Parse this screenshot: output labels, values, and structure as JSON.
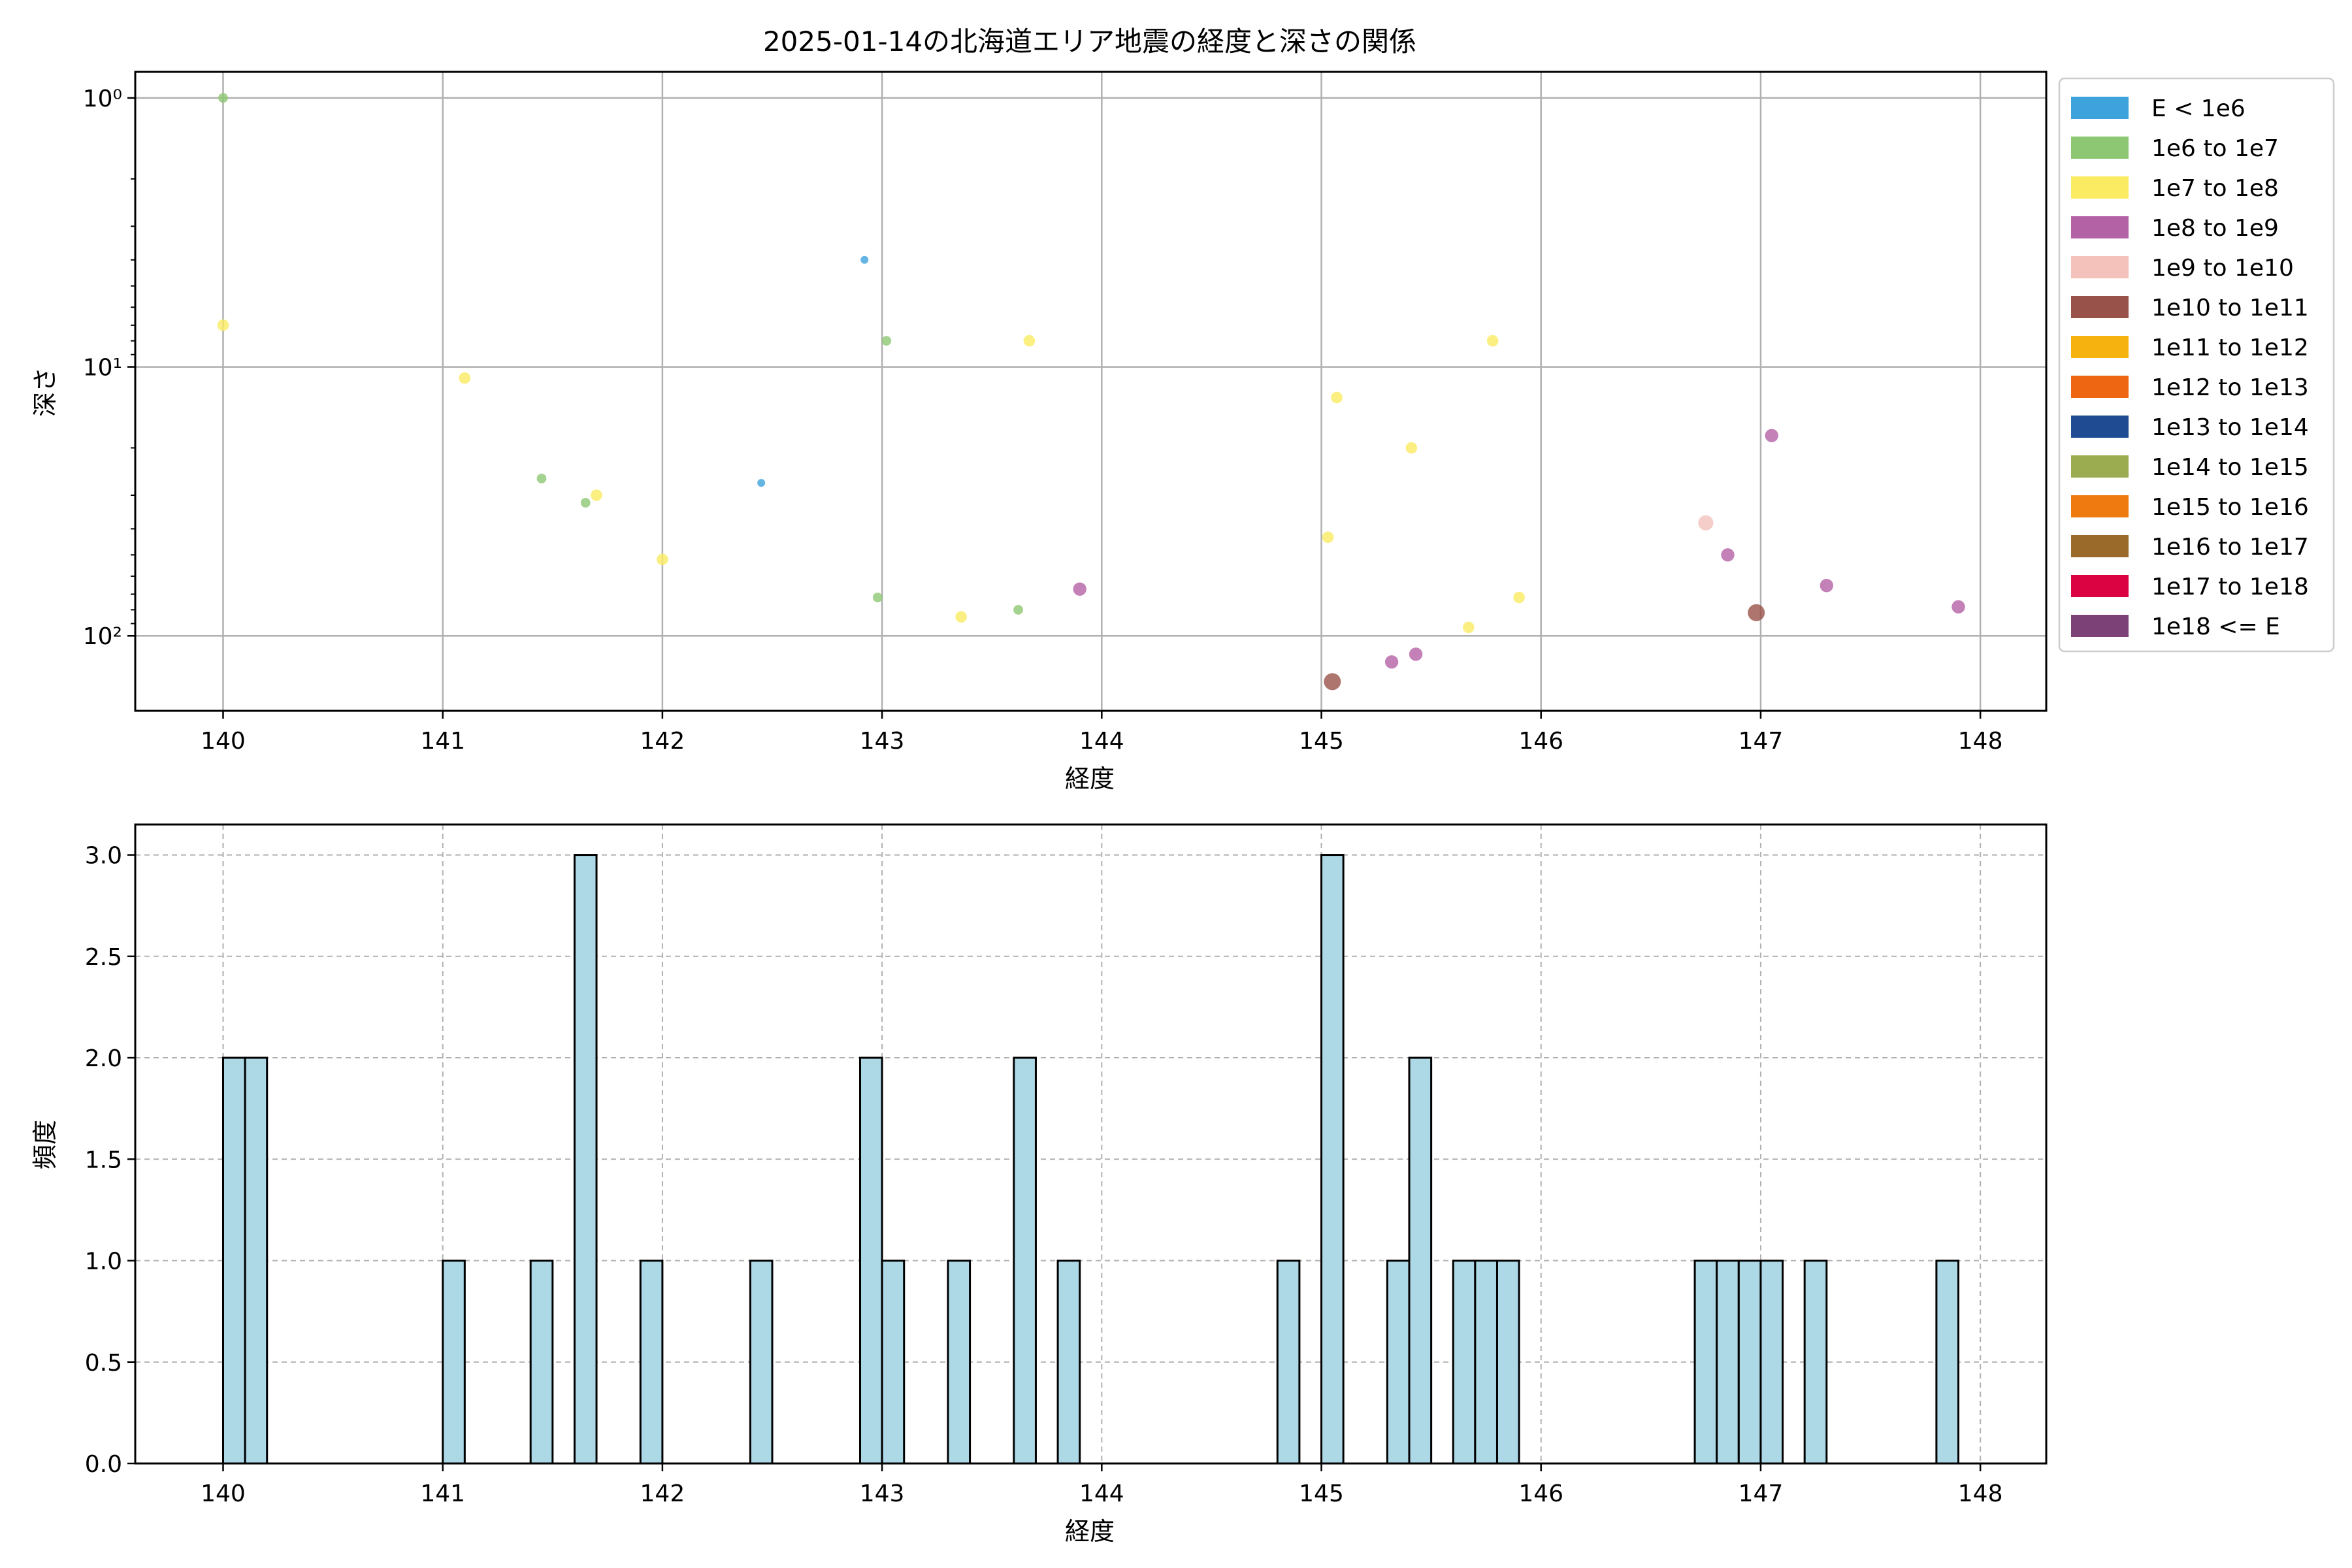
{
  "chart_data": [
    {
      "type": "scatter",
      "title": "2025-01-14の北海道エリア地震の経度と深さの関係",
      "xlabel": "経度",
      "ylabel": "深さ",
      "xlim": [
        139.6,
        148.3
      ],
      "ylim": [
        190,
        0.8
      ],
      "yscale": "log",
      "y_inverted": true,
      "x_ticks": [
        140,
        141,
        142,
        143,
        144,
        145,
        146,
        147,
        148
      ],
      "y_ticks": [
        {
          "value": 1,
          "label": "10⁰"
        },
        {
          "value": 10,
          "label": "10¹"
        },
        {
          "value": 100,
          "label": "10²"
        }
      ],
      "grid": true,
      "legend": {
        "placement": "outside-right",
        "entries": [
          {
            "label": "E < 1e6",
            "color": "#3ea2dc"
          },
          {
            "label": "1e6 to 1e7",
            "color": "#8dc773"
          },
          {
            "label": "1e7 to 1e8",
            "color": "#fbeb62"
          },
          {
            "label": "1e8 to 1e9",
            "color": "#b462a6"
          },
          {
            "label": "1e9 to 1e10",
            "color": "#f4c2bb"
          },
          {
            "label": "1e10 to 1e11",
            "color": "#985249"
          },
          {
            "label": "1e11 to 1e12",
            "color": "#f6b30f"
          },
          {
            "label": "1e12 to 1e13",
            "color": "#ee6512"
          },
          {
            "label": "1e13 to 1e14",
            "color": "#1e4b92"
          },
          {
            "label": "1e14 to 1e15",
            "color": "#9bab4f"
          },
          {
            "label": "1e15 to 1e16",
            "color": "#ef7b10"
          },
          {
            "label": "1e16 to 1e17",
            "color": "#9a6a2b"
          },
          {
            "label": "1e17 to 1e18",
            "color": "#dc0342"
          },
          {
            "label": "1e18 <= E",
            "color": "#7c4277"
          }
        ]
      },
      "points": [
        {
          "x": 140.0,
          "y": 1.0,
          "cls": 1
        },
        {
          "x": 140.0,
          "y": 7,
          "cls": 2
        },
        {
          "x": 141.1,
          "y": 11,
          "cls": 2
        },
        {
          "x": 141.45,
          "y": 26,
          "cls": 1
        },
        {
          "x": 141.65,
          "y": 32,
          "cls": 1
        },
        {
          "x": 141.7,
          "y": 30,
          "cls": 2
        },
        {
          "x": 142.0,
          "y": 52,
          "cls": 2
        },
        {
          "x": 142.45,
          "y": 27,
          "cls": 0
        },
        {
          "x": 142.92,
          "y": 4,
          "cls": 0
        },
        {
          "x": 142.98,
          "y": 72,
          "cls": 1
        },
        {
          "x": 143.02,
          "y": 8,
          "cls": 1
        },
        {
          "x": 143.36,
          "y": 85,
          "cls": 2
        },
        {
          "x": 143.62,
          "y": 80,
          "cls": 1
        },
        {
          "x": 143.67,
          "y": 8,
          "cls": 2
        },
        {
          "x": 143.9,
          "y": 67,
          "cls": 3
        },
        {
          "x": 145.03,
          "y": 43,
          "cls": 2
        },
        {
          "x": 145.05,
          "y": 148,
          "cls": 5
        },
        {
          "x": 145.07,
          "y": 13,
          "cls": 2
        },
        {
          "x": 145.32,
          "y": 125,
          "cls": 3
        },
        {
          "x": 145.41,
          "y": 20,
          "cls": 2
        },
        {
          "x": 145.43,
          "y": 117,
          "cls": 3
        },
        {
          "x": 145.67,
          "y": 93,
          "cls": 2
        },
        {
          "x": 145.78,
          "y": 8,
          "cls": 2
        },
        {
          "x": 145.9,
          "y": 72,
          "cls": 2
        },
        {
          "x": 146.75,
          "y": 38,
          "cls": 4
        },
        {
          "x": 146.85,
          "y": 50,
          "cls": 3
        },
        {
          "x": 146.98,
          "y": 82,
          "cls": 5
        },
        {
          "x": 147.05,
          "y": 18,
          "cls": 3
        },
        {
          "x": 147.3,
          "y": 65,
          "cls": 3
        },
        {
          "x": 147.9,
          "y": 78,
          "cls": 3
        }
      ]
    },
    {
      "type": "bar",
      "subtype": "histogram",
      "xlabel": "経度",
      "ylabel": "頻度",
      "xlim": [
        139.6,
        148.3
      ],
      "ylim": [
        0,
        3.15
      ],
      "x_ticks": [
        140,
        141,
        142,
        143,
        144,
        145,
        146,
        147,
        148
      ],
      "y_ticks": [
        "0.0",
        "0.5",
        "1.0",
        "1.5",
        "2.0",
        "2.5",
        "3.0"
      ],
      "grid": true,
      "grid_style": "dashed",
      "bar_color": "#add8e6",
      "bins": [
        {
          "left": 140.0,
          "width": 0.1,
          "count": 2
        },
        {
          "left": 140.1,
          "width": 0.1,
          "count": 2
        },
        {
          "left": 141.0,
          "width": 0.1,
          "count": 1
        },
        {
          "left": 141.4,
          "width": 0.1,
          "count": 1
        },
        {
          "left": 141.6,
          "width": 0.1,
          "count": 3
        },
        {
          "left": 141.9,
          "width": 0.1,
          "count": 1
        },
        {
          "left": 142.4,
          "width": 0.1,
          "count": 1
        },
        {
          "left": 142.9,
          "width": 0.1,
          "count": 2
        },
        {
          "left": 143.0,
          "width": 0.1,
          "count": 1
        },
        {
          "left": 143.3,
          "width": 0.1,
          "count": 1
        },
        {
          "left": 143.6,
          "width": 0.1,
          "count": 2
        },
        {
          "left": 143.8,
          "width": 0.1,
          "count": 1
        },
        {
          "left": 144.8,
          "width": 0.1,
          "count": 1
        },
        {
          "left": 145.0,
          "width": 0.1,
          "count": 3
        },
        {
          "left": 145.3,
          "width": 0.1,
          "count": 1
        },
        {
          "left": 145.4,
          "width": 0.1,
          "count": 2
        },
        {
          "left": 145.6,
          "width": 0.1,
          "count": 1
        },
        {
          "left": 145.7,
          "width": 0.1,
          "count": 1
        },
        {
          "left": 145.8,
          "width": 0.1,
          "count": 1
        },
        {
          "left": 146.7,
          "width": 0.1,
          "count": 1
        },
        {
          "left": 146.8,
          "width": 0.1,
          "count": 1
        },
        {
          "left": 146.9,
          "width": 0.1,
          "count": 1
        },
        {
          "left": 147.0,
          "width": 0.1,
          "count": 1
        },
        {
          "left": 147.2,
          "width": 0.1,
          "count": 1
        },
        {
          "left": 147.8,
          "width": 0.1,
          "count": 1
        }
      ]
    }
  ]
}
